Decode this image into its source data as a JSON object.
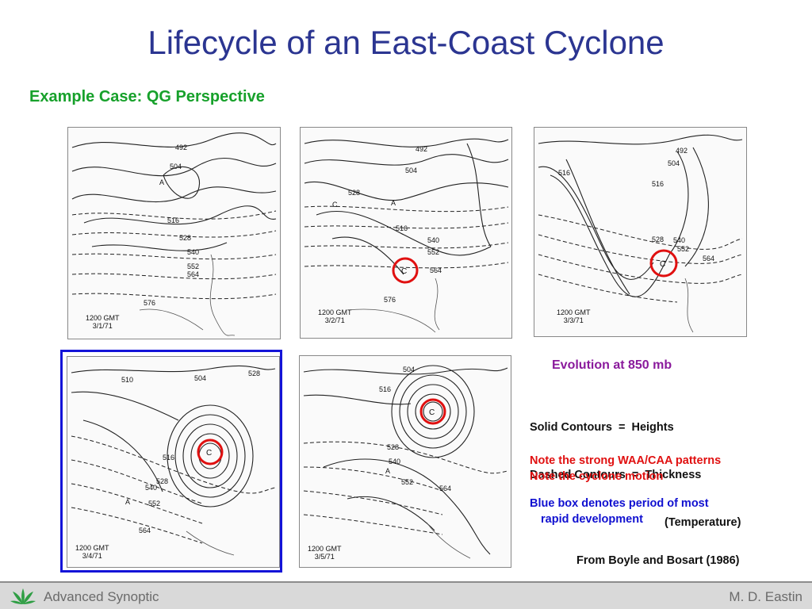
{
  "slide": {
    "title": "Lifecycle of an East-Coast Cyclone",
    "subtitle": "Example Case:  QG Perspective"
  },
  "maps": [
    {
      "time": "1200 GMT",
      "date": "3/1/71",
      "cyclone_marked": false,
      "in_rapid_development_box": false
    },
    {
      "time": "1200 GMT",
      "date": "3/2/71",
      "cyclone_marked": true,
      "in_rapid_development_box": false
    },
    {
      "time": "1200 GMT",
      "date": "3/3/71",
      "cyclone_marked": true,
      "in_rapid_development_box": false
    },
    {
      "time": "1200 GMT",
      "date": "3/4/71",
      "cyclone_marked": true,
      "in_rapid_development_box": true
    },
    {
      "time": "1200 GMT",
      "date": "3/5/71",
      "cyclone_marked": true,
      "in_rapid_development_box": true
    }
  ],
  "panel": {
    "heading": "Evolution at 850 mb",
    "solid": "Solid Contours  =  Heights",
    "dashed": "Dashed Contours  =  Thickness",
    "dashed_sub": "(Temperature)",
    "note1": "Note the strong WAA/CAA patterns",
    "note2": "Note the cyclone motion",
    "blue_note_1": "Blue box denotes period of most",
    "blue_note_2": "rapid development",
    "source": "From Boyle and Bosart (1986)"
  },
  "footer": {
    "course": "Advanced Synoptic",
    "author": "M. D. Eastin"
  },
  "colors": {
    "title": "#2b3591",
    "subtitle": "#17a12b",
    "heading": "#8a1a9c",
    "notes": "#e01010",
    "blue_box": "#1414d8",
    "cyclone_circle": "#e01010"
  }
}
